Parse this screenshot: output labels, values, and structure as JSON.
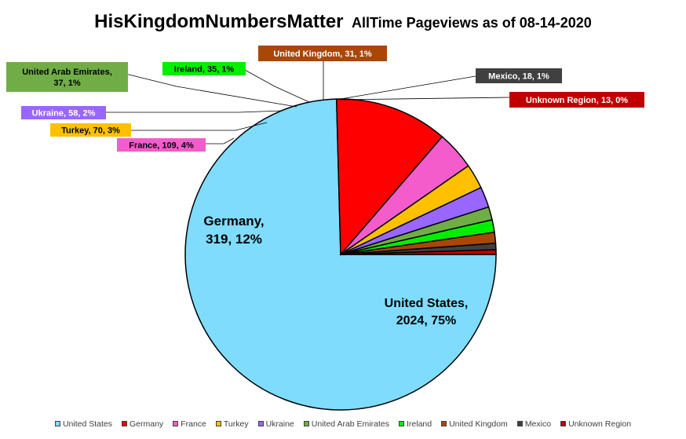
{
  "title": {
    "main": "HisKingdomNumbersMatter",
    "sub": "AllTime Pageviews as of 08-14-2020"
  },
  "chart_data": {
    "type": "pie",
    "title": "HisKingdomNumbersMatter AllTime Pageviews as of 08-14-2020",
    "legend_position": "bottom",
    "slices": [
      {
        "name": "United States",
        "value": 2024,
        "percent_label": "75%",
        "label_line1": "United States,",
        "label_line2": "2024, 75%",
        "color": "#7fdcfc"
      },
      {
        "name": "Germany",
        "value": 319,
        "percent_label": "12%",
        "label_line1": "Germany,",
        "label_line2": "319, 12%",
        "color": "#ff0000"
      },
      {
        "name": "France",
        "value": 109,
        "percent_label": "4%",
        "label_line1": "France, 109, 4%",
        "color": "#f45ccc"
      },
      {
        "name": "Turkey",
        "value": 70,
        "percent_label": "3%",
        "label_line1": "Turkey, 70, 3%",
        "color": "#ffc000"
      },
      {
        "name": "Ukraine",
        "value": 58,
        "percent_label": "2%",
        "label_line1": "Ukraine, 58, 2%",
        "color": "#9966ff"
      },
      {
        "name": "United Arab Emirates",
        "value": 37,
        "percent_label": "1%",
        "label_line1": "United Arab Emirates,",
        "label_line2": "37, 1%",
        "color": "#70ad47"
      },
      {
        "name": "Ireland",
        "value": 35,
        "percent_label": "1%",
        "label_line1": "Ireland, 35, 1%",
        "color": "#00ee00"
      },
      {
        "name": "United Kingdom",
        "value": 31,
        "percent_label": "1%",
        "label_line1": "United Kingdom, 31, 1%",
        "color": "#a94707"
      },
      {
        "name": "Mexico",
        "value": 18,
        "percent_label": "1%",
        "label_line1": "Mexico, 18, 1%",
        "color": "#404040"
      },
      {
        "name": "Unknown Region",
        "value": 13,
        "percent_label": "0%",
        "label_line1": "Unknown Region, 13, 0%",
        "color": "#c00000"
      }
    ]
  }
}
